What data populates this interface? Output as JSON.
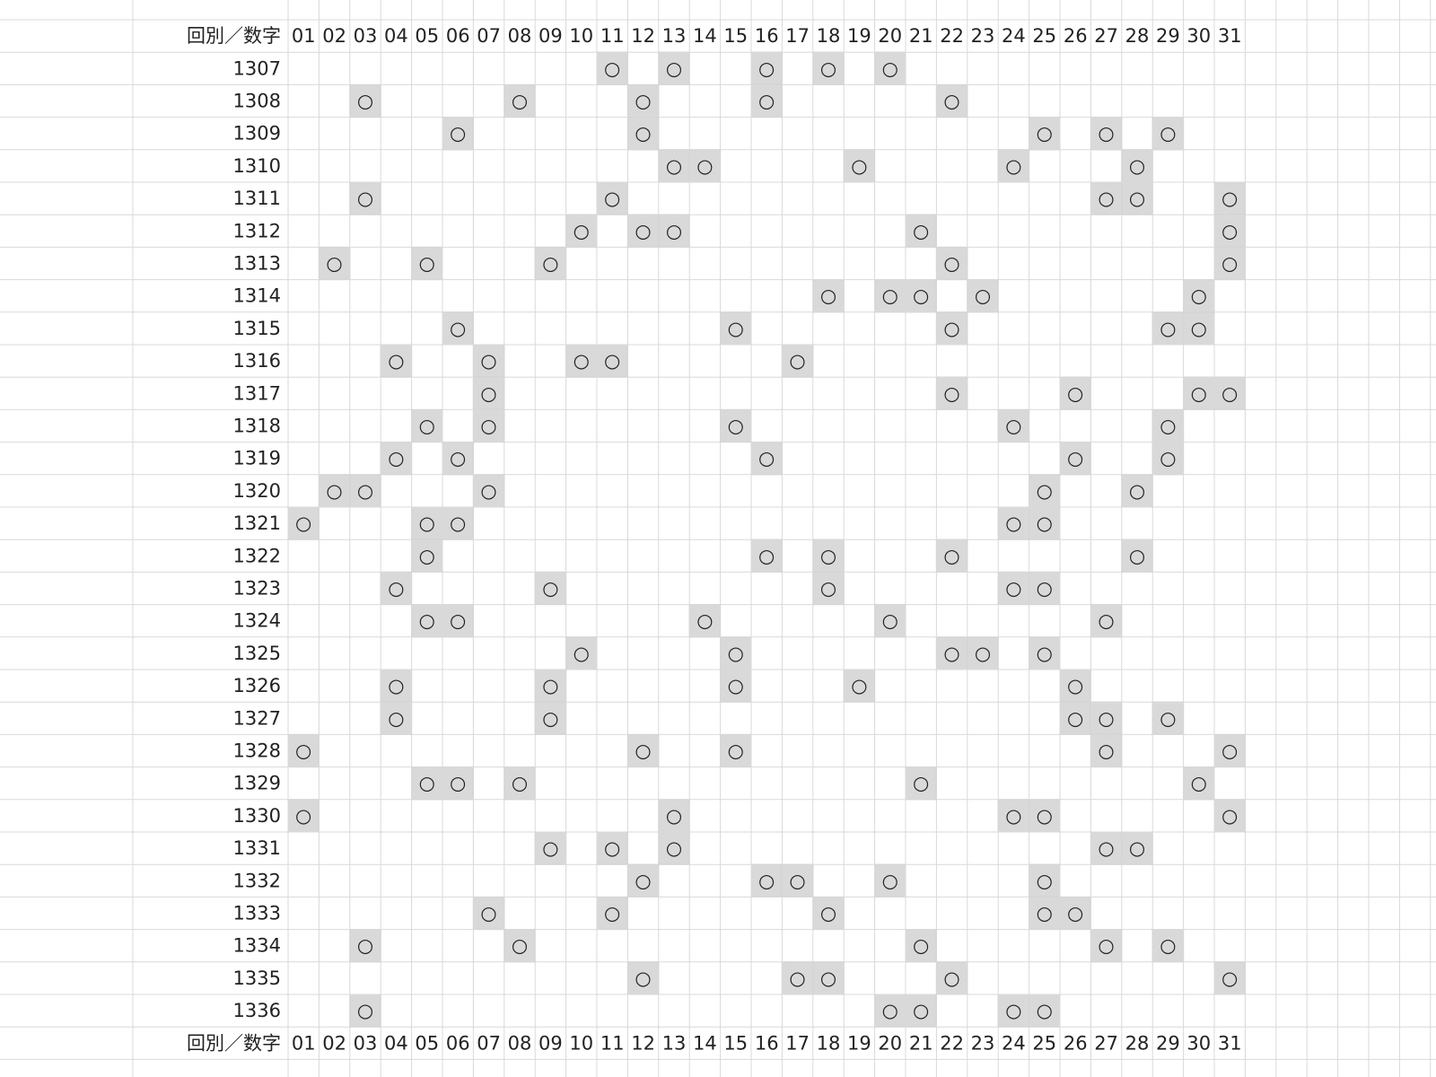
{
  "table": {
    "corner": "回別／数字",
    "columns": [
      "01",
      "02",
      "03",
      "04",
      "05",
      "06",
      "07",
      "08",
      "09",
      "10",
      "11",
      "12",
      "13",
      "14",
      "15",
      "16",
      "17",
      "18",
      "19",
      "20",
      "21",
      "22",
      "23",
      "24",
      "25",
      "26",
      "27",
      "28",
      "29",
      "30",
      "31"
    ],
    "mark": "○",
    "rows": [
      {
        "round": "1307",
        "picks": [
          11,
          13,
          16,
          18,
          20
        ]
      },
      {
        "round": "1308",
        "picks": [
          3,
          8,
          12,
          16,
          22
        ]
      },
      {
        "round": "1309",
        "picks": [
          6,
          12,
          25,
          27,
          29
        ]
      },
      {
        "round": "1310",
        "picks": [
          13,
          14,
          19,
          24,
          28
        ]
      },
      {
        "round": "1311",
        "picks": [
          3,
          11,
          27,
          28,
          31
        ]
      },
      {
        "round": "1312",
        "picks": [
          10,
          12,
          13,
          21,
          31
        ]
      },
      {
        "round": "1313",
        "picks": [
          2,
          5,
          9,
          22,
          31
        ]
      },
      {
        "round": "1314",
        "picks": [
          18,
          20,
          21,
          23,
          30
        ]
      },
      {
        "round": "1315",
        "picks": [
          6,
          15,
          22,
          29,
          30
        ]
      },
      {
        "round": "1316",
        "picks": [
          4,
          7,
          10,
          11,
          17
        ]
      },
      {
        "round": "1317",
        "picks": [
          7,
          22,
          26,
          30,
          31
        ]
      },
      {
        "round": "1318",
        "picks": [
          5,
          7,
          15,
          24,
          29
        ]
      },
      {
        "round": "1319",
        "picks": [
          4,
          6,
          16,
          26,
          29
        ]
      },
      {
        "round": "1320",
        "picks": [
          2,
          3,
          7,
          25,
          28
        ]
      },
      {
        "round": "1321",
        "picks": [
          1,
          5,
          6,
          24,
          25
        ]
      },
      {
        "round": "1322",
        "picks": [
          5,
          16,
          18,
          22,
          28
        ]
      },
      {
        "round": "1323",
        "picks": [
          4,
          9,
          18,
          24,
          25
        ]
      },
      {
        "round": "1324",
        "picks": [
          5,
          6,
          14,
          20,
          27
        ]
      },
      {
        "round": "1325",
        "picks": [
          10,
          15,
          22,
          23,
          25
        ]
      },
      {
        "round": "1326",
        "picks": [
          4,
          9,
          15,
          19,
          26
        ]
      },
      {
        "round": "1327",
        "picks": [
          4,
          9,
          26,
          27,
          29
        ]
      },
      {
        "round": "1328",
        "picks": [
          1,
          12,
          15,
          27,
          31
        ]
      },
      {
        "round": "1329",
        "picks": [
          5,
          6,
          8,
          21,
          30
        ]
      },
      {
        "round": "1330",
        "picks": [
          1,
          13,
          24,
          25,
          31
        ]
      },
      {
        "round": "1331",
        "picks": [
          9,
          11,
          13,
          27,
          28
        ]
      },
      {
        "round": "1332",
        "picks": [
          12,
          16,
          17,
          20,
          25
        ]
      },
      {
        "round": "1333",
        "picks": [
          7,
          11,
          18,
          25,
          26
        ]
      },
      {
        "round": "1334",
        "picks": [
          3,
          8,
          21,
          27,
          29
        ]
      },
      {
        "round": "1335",
        "picks": [
          12,
          17,
          18,
          22,
          31
        ]
      },
      {
        "round": "1336",
        "picks": [
          3,
          20,
          21,
          24,
          25
        ]
      }
    ]
  }
}
